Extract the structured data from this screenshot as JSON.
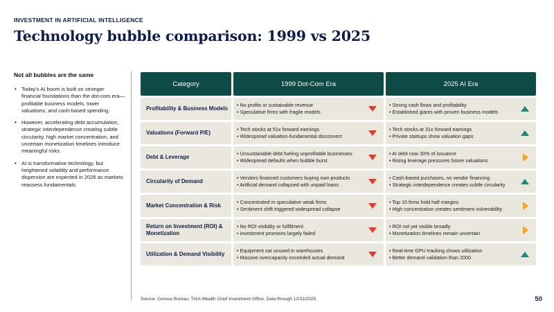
{
  "eyebrow": "INVESTMENT IN ARTIFICIAL INTELLIGENCE",
  "title": "Technology bubble comparison: 1999 vs 2025",
  "left": {
    "heading": "Not all bubbles are the same",
    "bullets": [
      "Today's AI boom is built on stronger financial foundations than the dot-com era—profitable business models, lower valuations, and cash-based spending.",
      "However, accelerating debt accumulation, strategic interdependence creating subtle circularity, high market concentration, and uncertain monetization timelines introduce meaningful risks.",
      "AI is transformative technology, but heightened volatility and performance dispersion are expected in 2026 as markets reassess fundamentals."
    ]
  },
  "table": {
    "headers": [
      "Category",
      "1999 Dot-Com Era",
      "2025 AI Era"
    ],
    "rows": [
      {
        "category": "Profitability & Business Models",
        "era1999": [
          "• No profits or sustainable revenue",
          "• Speculative firms with fragile models"
        ],
        "era1999_indicator": "down",
        "era2025": [
          "• Strong cash flows and profitability",
          "• Established giants with proven business models"
        ],
        "era2025_indicator": "up"
      },
      {
        "category": "Valuations (Forward P/E)",
        "era1999": [
          "• Tech stocks at 51x forward earnings",
          "• Widespread valuation-fundamental disconnect"
        ],
        "era1999_indicator": "down",
        "era2025": [
          "• Tech stocks at 31x forward earnings",
          "• Private startups show valuation gaps"
        ],
        "era2025_indicator": "up"
      },
      {
        "category": "Debt & Leverage",
        "era1999": [
          "• Unsustainable debt fueling unprofitable businesses",
          "• Widespread defaults when bubble burst"
        ],
        "era1999_indicator": "down",
        "era2025": [
          "• AI debt now 30% of issuance",
          "• Rising leverage pressures future valuations"
        ],
        "era2025_indicator": "neutral"
      },
      {
        "category": "Circularity of Demand",
        "era1999": [
          "• Vendors financed customers buying own products",
          "• Artificial demand collapsed with unpaid loans"
        ],
        "era1999_indicator": "down",
        "era2025": [
          "• Cash-based purchases, no vendor financing",
          "• Strategic interdependence creates subtle circularity"
        ],
        "era2025_indicator": "up"
      },
      {
        "category": "Market Concentration & Risk",
        "era1999": [
          "• Concentrated in speculative weak firms",
          "• Sentiment shift triggered widespread collapse"
        ],
        "era1999_indicator": "down",
        "era2025": [
          "• Top 10 firms hold half margins",
          "• High concentration creates sentiment vulnerability"
        ],
        "era2025_indicator": "neutral"
      },
      {
        "category": "Return on Investment (ROI) & Monetization",
        "era1999": [
          "• No ROI visibility or fulfillment",
          "• Investment promises largely failed"
        ],
        "era1999_indicator": "down",
        "era2025": [
          "• ROI not yet visible broadly",
          "• Monetization timelines remain uncertain"
        ],
        "era2025_indicator": "neutral"
      },
      {
        "category": "Utilization & Demand Visibility",
        "era1999": [
          "• Equipment sat unused in warehouses",
          "• Massive overcapacity exceeded actual demand"
        ],
        "era1999_indicator": "down",
        "era2025": [
          "• Real-time GPU tracking shows utilization",
          "• Better demand validation than 2000"
        ],
        "era2025_indicator": "up"
      }
    ]
  },
  "colors": {
    "header_bg": "#0e4b46",
    "cell_bg": "#e9e7de",
    "title": "#0f1d4a",
    "negative": "#e23a2d",
    "positive": "#1d8a78",
    "neutral": "#f2a614"
  },
  "source": "Source: Census Bureau, TIAA Wealth Chief Investment Office. Data through 12/31/2025.",
  "page_number": "50"
}
